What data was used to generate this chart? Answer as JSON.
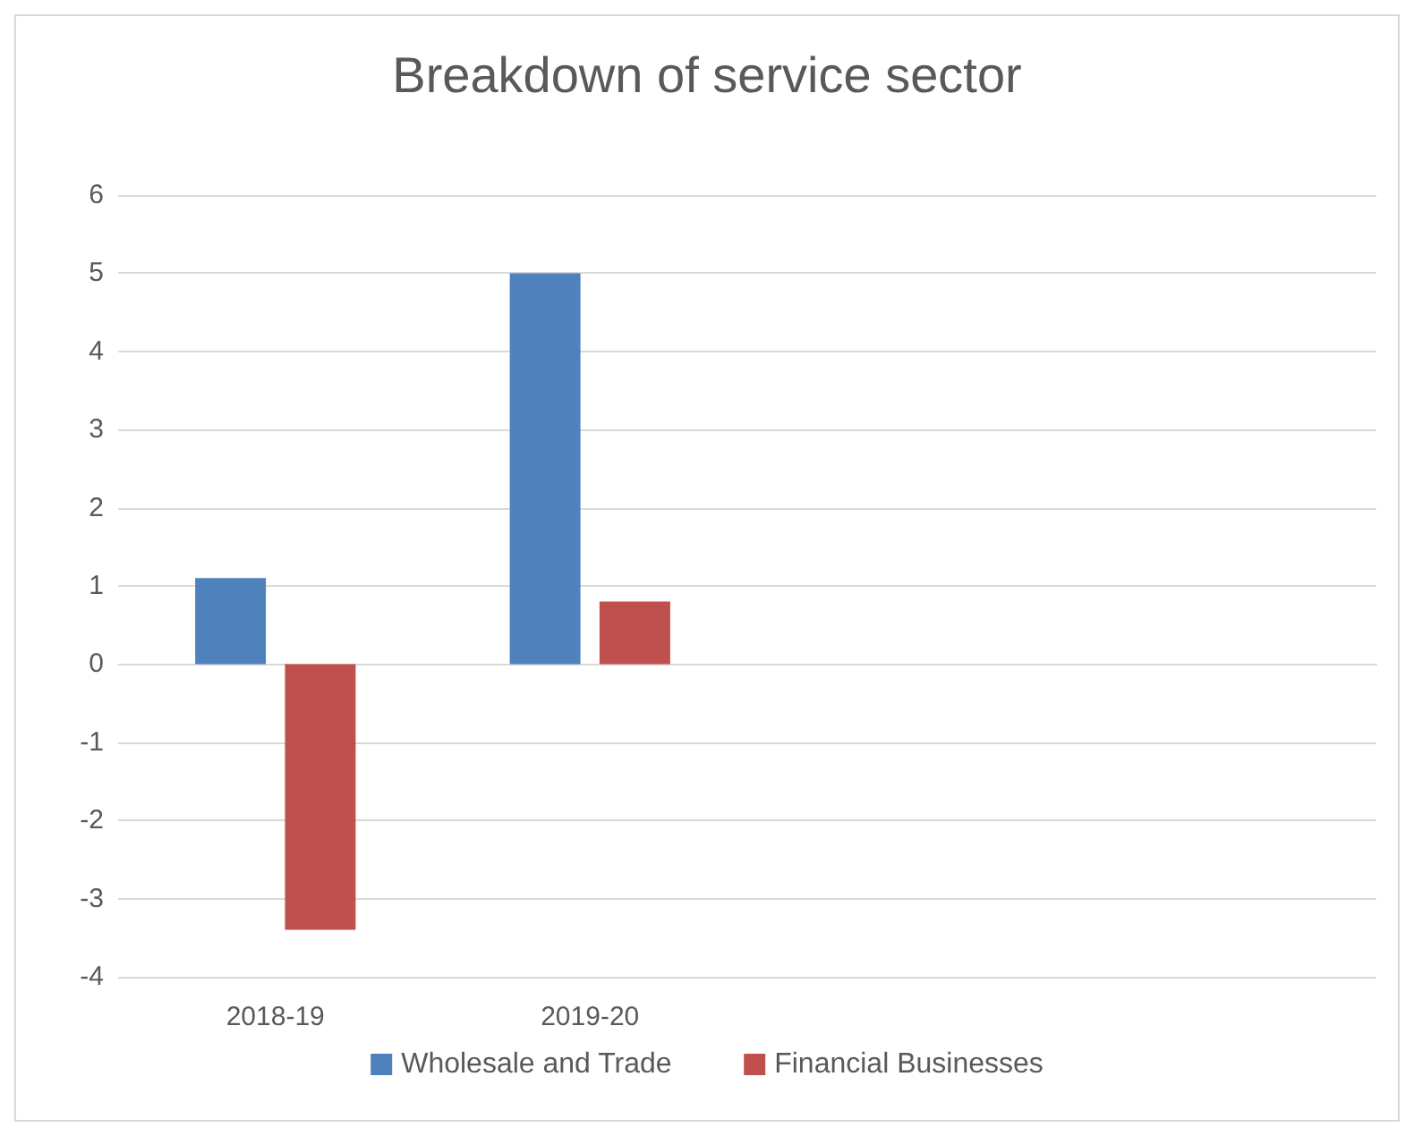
{
  "chart_data": {
    "type": "bar",
    "title": "Breakdown of service sector",
    "categories": [
      "2018-19",
      "2019-20",
      null,
      null
    ],
    "series": [
      {
        "name": "Wholesale and Trade",
        "color": "#4f81bd",
        "values": [
          1.1,
          5.0,
          null,
          null
        ]
      },
      {
        "name": "Financial Businesses",
        "color": "#c0504d",
        "values": [
          -3.4,
          0.8,
          null,
          null
        ]
      }
    ],
    "ylim": [
      -4,
      6
    ],
    "yticks": [
      -4,
      -3,
      -2,
      -1,
      0,
      1,
      2,
      3,
      4,
      5,
      6
    ],
    "grid": "y",
    "legend": "bottom"
  }
}
